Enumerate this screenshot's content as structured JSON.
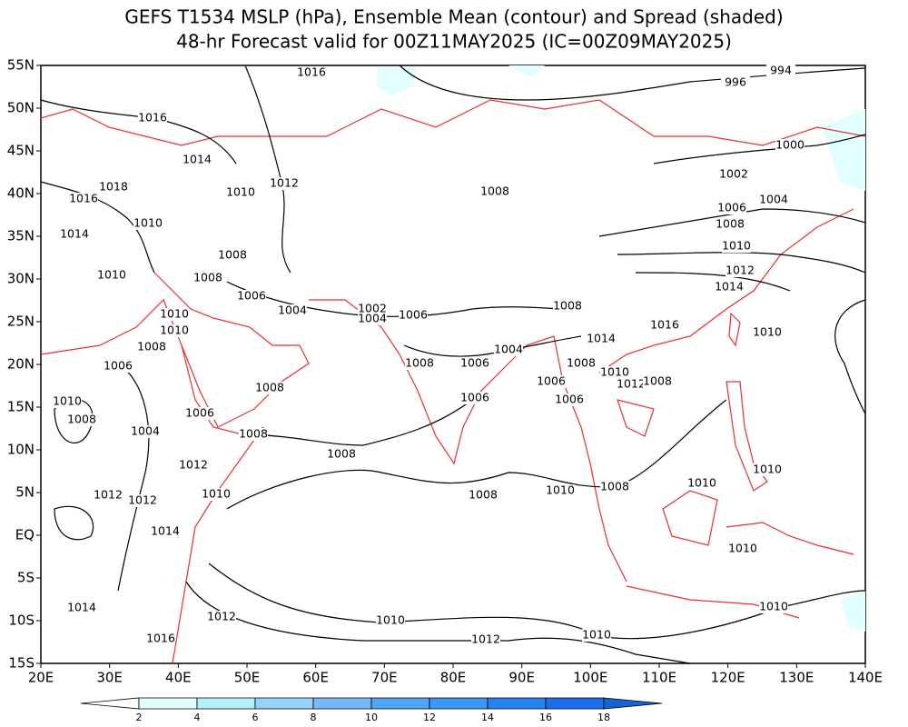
{
  "header": {
    "title_line1": "GEFS T1534 MSLP (hPa), Ensemble Mean (contour) and Spread (shaded)",
    "title_line2": "48-hr Forecast valid for 00Z11MAY2025 (IC=00Z09MAY2025)"
  },
  "map": {
    "lat_labels": [
      "55N",
      "50N",
      "45N",
      "40N",
      "35N",
      "30N",
      "25N",
      "20N",
      "15N",
      "10N",
      "5N",
      "EQ",
      "5S",
      "10S",
      "15S"
    ],
    "lon_labels": [
      "20E",
      "30E",
      "40E",
      "50E",
      "60E",
      "70E",
      "80E",
      "90E",
      "100E",
      "110E",
      "120E",
      "130E",
      "140E"
    ],
    "contour_labels": [
      1016,
      1016,
      1014,
      1012,
      1010,
      1018,
      1016,
      1010,
      1014,
      1008,
      1008,
      1010,
      1006,
      1004,
      1002,
      1004,
      1006,
      1010,
      1010,
      1008,
      1006,
      1008,
      1006,
      1004,
      1008,
      1008,
      1010,
      1012,
      1010,
      1012,
      1012,
      1014,
      1014,
      1016,
      1012,
      1010,
      1012,
      1010,
      1008,
      1008,
      1010,
      1008,
      1004,
      1008,
      1006,
      1006,
      1006,
      1006,
      1008,
      1010,
      1012,
      1008,
      1014,
      1016,
      1010,
      1014,
      1012,
      1010,
      1008,
      1006,
      1004,
      1002,
      1000,
      996,
      994,
      1008,
      1008,
      1010,
      1010,
      1010,
      1010
    ]
  },
  "colorbar": {
    "ticks": [
      2,
      4,
      6,
      8,
      10,
      12,
      14,
      16,
      18
    ],
    "colors": [
      "#ffffff",
      "#e1ffff",
      "#b4f0fa",
      "#96d2fa",
      "#78b9fa",
      "#50a5f5",
      "#3c97f5",
      "#2882f0",
      "#1e6eeb",
      "#1464d2"
    ]
  }
}
